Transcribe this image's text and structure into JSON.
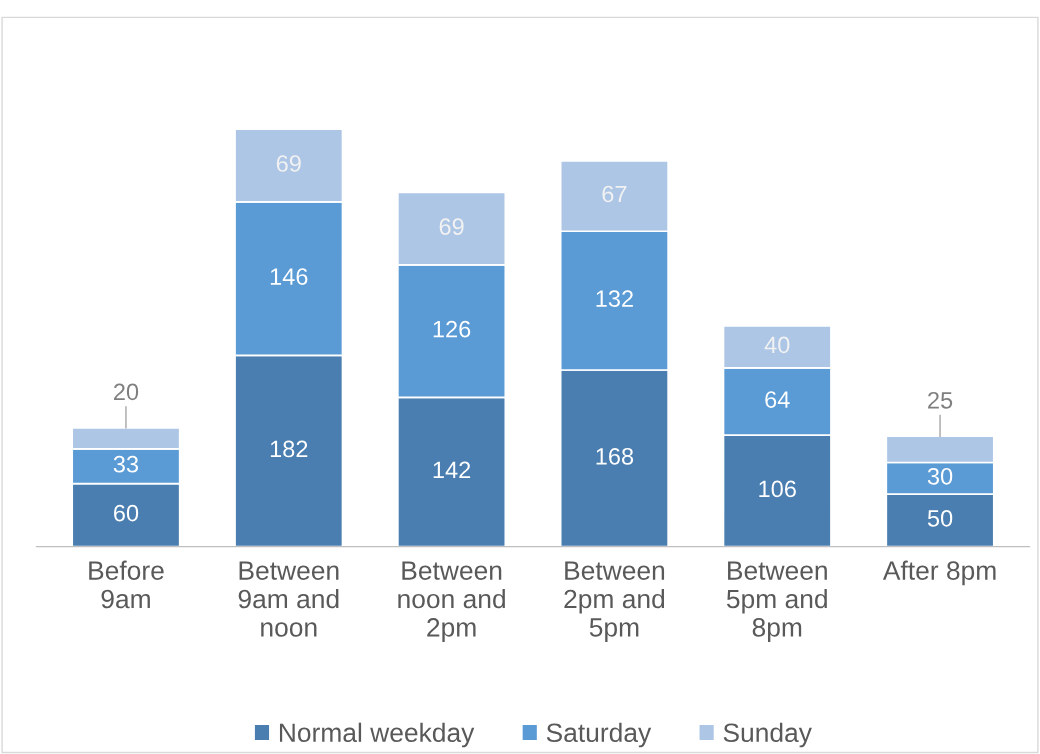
{
  "chart_data": {
    "type": "bar",
    "stacked": true,
    "data_labels": true,
    "legend": "bottom",
    "grid": false,
    "categories": [
      "Before 9am",
      "Between 9am and noon",
      "Between noon and 2pm",
      "Between 2pm and 5pm",
      "Between 5pm and 8pm",
      "After 8pm"
    ],
    "series": [
      {
        "name": "Normal weekday",
        "color": "#4a7eb0",
        "values": [
          60,
          182,
          142,
          168,
          106,
          50
        ]
      },
      {
        "name": "Saturday",
        "color": "#5b9bd5",
        "values": [
          33,
          146,
          126,
          132,
          64,
          30
        ]
      },
      {
        "name": "Sunday",
        "color": "#adc6e5",
        "values": [
          20,
          69,
          69,
          67,
          40,
          25
        ]
      }
    ]
  }
}
